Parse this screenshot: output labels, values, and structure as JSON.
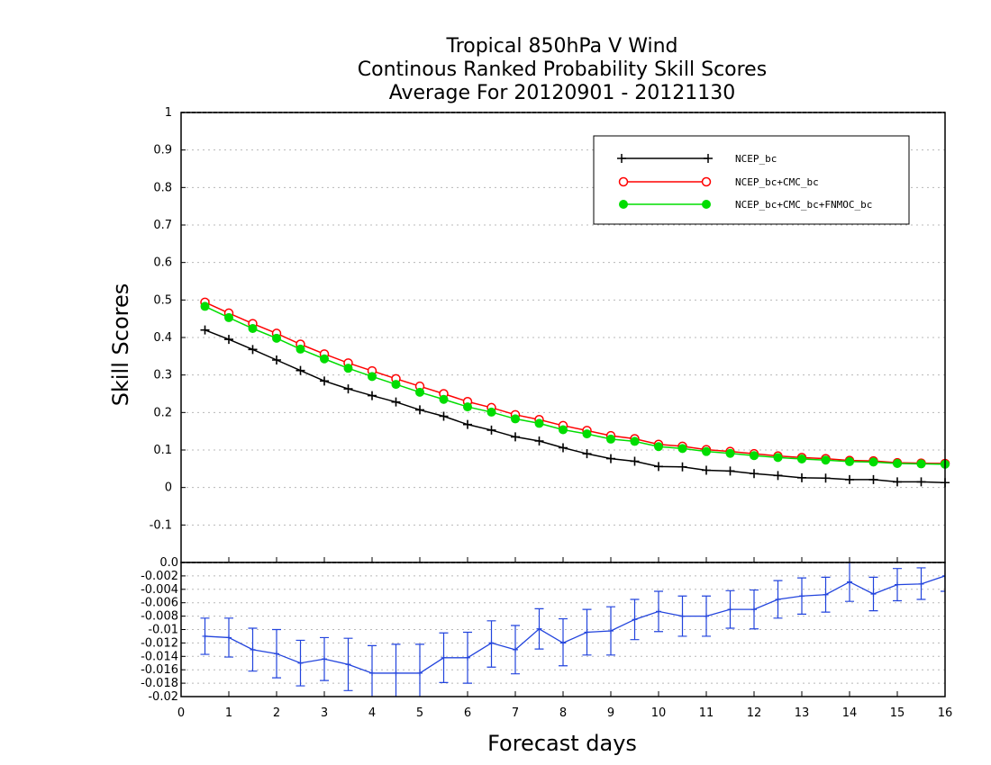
{
  "chart_data": [
    {
      "type": "line",
      "title_lines": [
        "Tropical 850hPa V Wind",
        "Continous Ranked Probability Skill Scores",
        "Average For 20120901 - 20121130"
      ],
      "xlabel": "Forecast days",
      "ylabel": "Skill Scores",
      "xlim": [
        0,
        16
      ],
      "ylim": [
        -0.2,
        1
      ],
      "x_ticks": [
        0,
        1,
        2,
        3,
        4,
        5,
        6,
        7,
        8,
        9,
        10,
        11,
        12,
        13,
        14,
        15,
        16
      ],
      "y_tick_labels": [
        "-0.1",
        "0",
        "0.1",
        "0.2",
        "0.3",
        "0.4",
        "0.5",
        "0.6",
        "0.7",
        "0.8",
        "0.9",
        "1"
      ],
      "grid": true,
      "legend_position": "top-right",
      "x": [
        0.5,
        1,
        1.5,
        2,
        2.5,
        3,
        3.5,
        4,
        4.5,
        5,
        5.5,
        6,
        6.5,
        7,
        7.5,
        8,
        8.5,
        9,
        9.5,
        10,
        10.5,
        11,
        11.5,
        12,
        12.5,
        13,
        13.5,
        14,
        14.5,
        15,
        15.5,
        16
      ],
      "series": [
        {
          "name": "NCEP_bc",
          "color": "#000000",
          "marker": "plus",
          "values": [
            0.42,
            0.395,
            0.368,
            0.34,
            0.312,
            0.284,
            0.263,
            0.245,
            0.228,
            0.207,
            0.19,
            0.168,
            0.153,
            0.135,
            0.124,
            0.106,
            0.09,
            0.077,
            0.07,
            0.056,
            0.055,
            0.046,
            0.044,
            0.037,
            0.032,
            0.026,
            0.025,
            0.021,
            0.021,
            0.015,
            0.015,
            0.013
          ]
        },
        {
          "name": "NCEP_bc+CMC_bc",
          "color": "#ff0000",
          "marker": "open-circle",
          "values": [
            0.494,
            0.465,
            0.437,
            0.411,
            0.382,
            0.356,
            0.332,
            0.311,
            0.29,
            0.27,
            0.25,
            0.229,
            0.213,
            0.194,
            0.181,
            0.165,
            0.152,
            0.138,
            0.13,
            0.115,
            0.11,
            0.101,
            0.096,
            0.09,
            0.084,
            0.08,
            0.077,
            0.072,
            0.071,
            0.066,
            0.065,
            0.064
          ]
        },
        {
          "name": "NCEP_bc+CMC_bc+FNMOC_bc",
          "color": "#00dd00",
          "marker": "filled-circle",
          "values": [
            0.483,
            0.453,
            0.424,
            0.398,
            0.369,
            0.343,
            0.318,
            0.296,
            0.275,
            0.254,
            0.235,
            0.215,
            0.201,
            0.183,
            0.171,
            0.154,
            0.143,
            0.129,
            0.123,
            0.109,
            0.104,
            0.096,
            0.091,
            0.085,
            0.08,
            0.076,
            0.073,
            0.069,
            0.068,
            0.064,
            0.063,
            0.062
          ]
        }
      ]
    },
    {
      "type": "line",
      "panel": "difference",
      "xlim": [
        0,
        16
      ],
      "ylim": [
        -0.02,
        0
      ],
      "x_ticks": [
        0,
        1,
        2,
        3,
        4,
        5,
        6,
        7,
        8,
        9,
        10,
        11,
        12,
        13,
        14,
        15,
        16
      ],
      "x_tick_labels": [
        "0",
        "1",
        "2",
        "3",
        "4",
        "5",
        "6",
        "7",
        "8",
        "9",
        "10",
        "11",
        "12",
        "13",
        "14",
        "15",
        "16"
      ],
      "y_ticks": [
        -0.02,
        -0.018,
        -0.016,
        -0.014,
        -0.012,
        -0.01,
        -0.008,
        -0.006,
        -0.004,
        -0.002,
        0
      ],
      "y_tick_labels": [
        "-0.02",
        "-0.018",
        "-0.016",
        "-0.014",
        "-0.012",
        "-0.01",
        "-0.008",
        "-0.006",
        "-0.004",
        "-0.002",
        "0.0"
      ],
      "grid": true,
      "color": "#2244dd",
      "x": [
        0.5,
        1,
        1.5,
        2,
        2.5,
        3,
        3.5,
        4,
        4.5,
        5,
        5.5,
        6,
        6.5,
        7,
        7.5,
        8,
        8.5,
        9,
        9.5,
        10,
        10.5,
        11,
        11.5,
        12,
        12.5,
        13,
        13.5,
        14,
        14.5,
        15,
        15.5,
        16
      ],
      "values": [
        -0.011,
        -0.0112,
        -0.013,
        -0.0136,
        -0.015,
        -0.0144,
        -0.0152,
        -0.0165,
        -0.0165,
        -0.0165,
        -0.0142,
        -0.0142,
        -0.012,
        -0.013,
        -0.0099,
        -0.012,
        -0.0104,
        -0.0102,
        -0.0085,
        -0.0073,
        -0.008,
        -0.008,
        -0.007,
        -0.007,
        -0.0055,
        -0.005,
        -0.0048,
        -0.0029,
        -0.0047,
        -0.0033,
        -0.0032,
        -0.002
      ],
      "error_low": [
        -0.0137,
        -0.0141,
        -0.0162,
        -0.0172,
        -0.0184,
        -0.0176,
        -0.0191,
        -0.0202,
        -0.0208,
        -0.0208,
        -0.0179,
        -0.018,
        -0.0156,
        -0.0166,
        -0.0129,
        -0.0154,
        -0.0138,
        -0.0138,
        -0.0115,
        -0.0103,
        -0.011,
        -0.011,
        -0.0098,
        -0.0099,
        -0.0083,
        -0.0077,
        -0.0074,
        -0.0058,
        -0.0072,
        -0.0057,
        -0.0055,
        -0.0043
      ],
      "error_high": [
        -0.0083,
        -0.0083,
        -0.0098,
        -0.01,
        -0.0116,
        -0.0112,
        -0.0113,
        -0.0124,
        -0.0122,
        -0.0122,
        -0.0105,
        -0.0104,
        -0.0087,
        -0.0094,
        -0.0069,
        -0.0084,
        -0.007,
        -0.0066,
        -0.0055,
        -0.0043,
        -0.005,
        -0.005,
        -0.0042,
        -0.0041,
        -0.0027,
        -0.0023,
        -0.0022,
        0.0,
        -0.0022,
        -0.0009,
        -0.0008,
        0.0003
      ]
    }
  ]
}
